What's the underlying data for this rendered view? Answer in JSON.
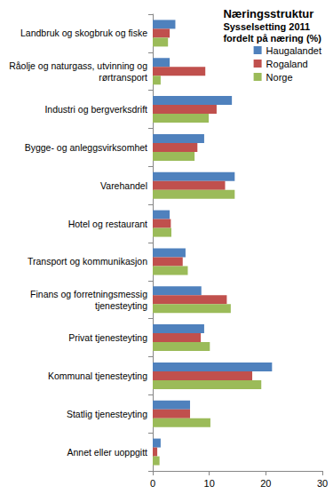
{
  "chart_data": {
    "type": "bar",
    "orientation": "horizontal",
    "title": "Næringsstruktur",
    "subtitle": "Sysselsetting 2011\nfordelt på næring (%)",
    "categories": [
      "Landbruk og skogbruk og fiske",
      "Råolje og naturgass, utvinning og\nrørtransport",
      "Industri og bergverksdrift",
      "Bygge- og anleggsvirksomhet",
      "Varehandel",
      "Hotel og restaurant",
      "Transport og kommunikasjon",
      "Finans og forretningsmessig\ntjenesteyting",
      "Privat tjenesteyting",
      "Kommunal tjenesteyting",
      "Statlig tjenesteyting",
      "Annet eller uoppgitt"
    ],
    "series": [
      {
        "name": "Haugalandet",
        "color": "#4f81bd",
        "values": [
          4.0,
          3.0,
          14.0,
          9.1,
          14.5,
          3.0,
          5.8,
          8.6,
          9.1,
          21.1,
          6.6,
          1.4
        ]
      },
      {
        "name": "Rogaland",
        "color": "#c0504d",
        "values": [
          3.0,
          9.3,
          11.3,
          7.9,
          12.8,
          3.2,
          5.3,
          13.1,
          8.5,
          17.6,
          6.6,
          0.8
        ]
      },
      {
        "name": "Norge",
        "color": "#9bbb59",
        "values": [
          2.7,
          1.4,
          9.9,
          7.4,
          14.5,
          3.3,
          6.2,
          13.8,
          10.1,
          19.2,
          10.2,
          1.2
        ]
      }
    ],
    "xlim": [
      0,
      30
    ],
    "xticks": [
      0,
      10,
      20,
      30
    ],
    "grid": false,
    "legend": "top-right"
  }
}
